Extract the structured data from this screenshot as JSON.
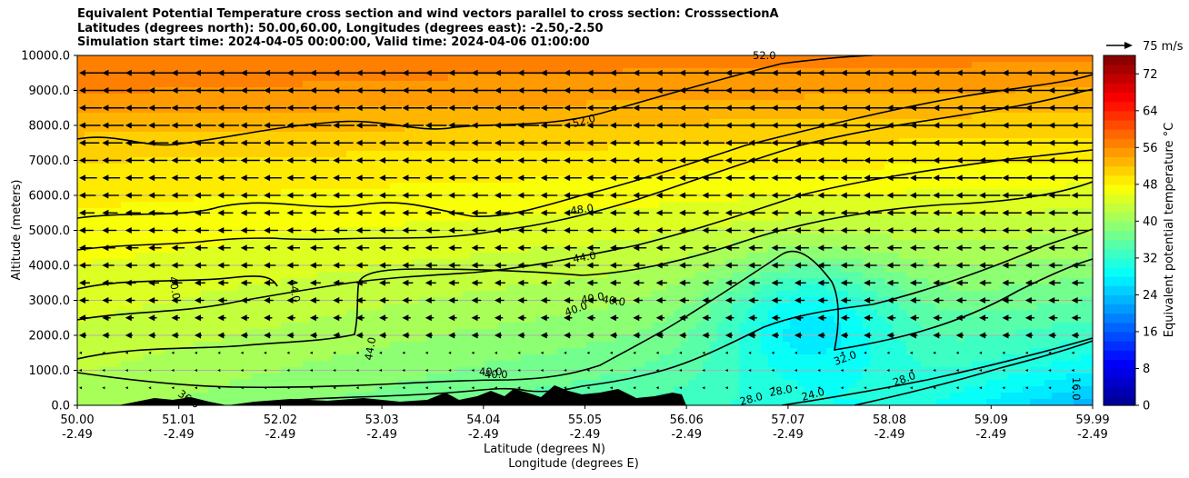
{
  "chart_data": {
    "type": "heatmap",
    "title_lines": [
      "Equivalent Potential Temperature cross section and wind vectors parallel to cross section: CrosssectionA",
      "Latitudes (degrees north): 50.00,60.00, Longitudes (degrees east): -2.50,-2.50",
      "Simulation start time: 2024-04-05 00:00:00, Valid time: 2024-04-06 01:00:00"
    ],
    "xlabel_lines": [
      "Latitude (degrees N)",
      "Longitude (degrees E)"
    ],
    "ylabel": "Altitude (meters)",
    "x_ticks": [
      {
        "lat": "50.00",
        "lon": "-2.49"
      },
      {
        "lat": "51.01",
        "lon": "-2.49"
      },
      {
        "lat": "52.02",
        "lon": "-2.49"
      },
      {
        "lat": "53.03",
        "lon": "-2.49"
      },
      {
        "lat": "54.04",
        "lon": "-2.49"
      },
      {
        "lat": "55.05",
        "lon": "-2.49"
      },
      {
        "lat": "56.06",
        "lon": "-2.49"
      },
      {
        "lat": "57.07",
        "lon": "-2.49"
      },
      {
        "lat": "58.08",
        "lon": "-2.49"
      },
      {
        "lat": "59.09",
        "lon": "-2.49"
      },
      {
        "lat": "59.99",
        "lon": "-2.49"
      }
    ],
    "y_ticks": [
      "0.0",
      "1000.0",
      "2000.0",
      "3000.0",
      "4000.0",
      "5000.0",
      "6000.0",
      "7000.0",
      "8000.0",
      "9000.0",
      "10000.0"
    ],
    "ylim": [
      0,
      10000
    ],
    "xlim": [
      50.0,
      59.99
    ],
    "colorbar": {
      "label": "Equivalent potential temperature °C",
      "ticks": [
        "0",
        "8",
        "16",
        "24",
        "32",
        "40",
        "48",
        "56",
        "64",
        "72"
      ],
      "range": [
        0,
        76
      ],
      "colormap": [
        "#00008f",
        "#0000ff",
        "#0080ff",
        "#00ffff",
        "#80ff80",
        "#ffff00",
        "#ff8000",
        "#ff0000",
        "#800000"
      ]
    },
    "wind_key": {
      "label": "75 m/s"
    },
    "contour_labels": [
      "52.0",
      "52.0",
      "48.0",
      "44.0",
      "44.0",
      "44.0",
      "40.0",
      "40.0",
      "40.0",
      "40.0",
      "40.0",
      "40.0",
      "36.0",
      "32.0",
      "28.0",
      "28.0",
      "28.0",
      "24.0",
      "16.0"
    ],
    "grid": true
  }
}
